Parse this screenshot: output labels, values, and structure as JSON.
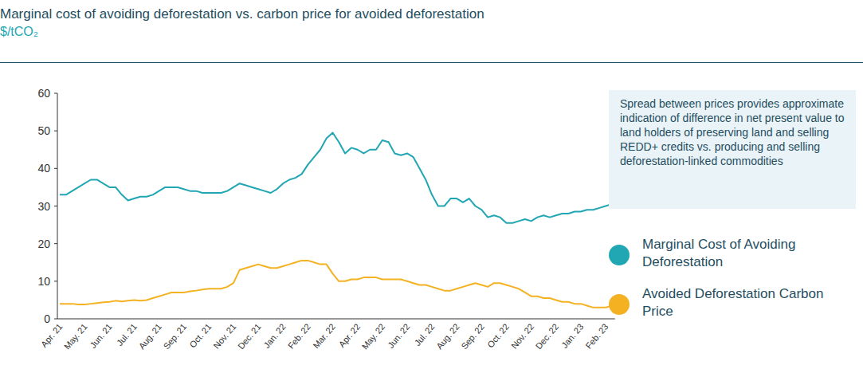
{
  "chart_data": {
    "type": "line",
    "title": "Marginal cost of avoiding deforestation vs. carbon price for avoided deforestation",
    "subtitle": "$/tCO₂",
    "annotation": "Spread between prices provides approximate indication of difference in net present value to land holders of preserving land and selling REDD+ credits vs. producing and selling deforestation-linked commodities",
    "categories": [
      "Apr. 21",
      null,
      null,
      null,
      "May. 21",
      null,
      null,
      null,
      "Jun. 21",
      null,
      null,
      null,
      "Jul. 21",
      null,
      null,
      null,
      "Aug. 21",
      null,
      null,
      null,
      "Sep. 21",
      null,
      null,
      null,
      "Oct. 21",
      null,
      null,
      null,
      "Nov. 21",
      null,
      null,
      null,
      "Dec. 21",
      null,
      null,
      null,
      "Jan. 22",
      null,
      null,
      null,
      "Feb. 22",
      null,
      null,
      null,
      "Mar. 22",
      null,
      null,
      null,
      "Apr. 22",
      null,
      null,
      null,
      "May. 22",
      null,
      null,
      null,
      "Jun. 22",
      null,
      null,
      null,
      "Jul. 22",
      null,
      null,
      null,
      "Aug. 22",
      null,
      null,
      null,
      "Sep. 22",
      null,
      null,
      null,
      "Oct. 22",
      null,
      null,
      null,
      "Nov. 22",
      null,
      null,
      null,
      "Dec. 22",
      null,
      null,
      null,
      "Jan. 23",
      null,
      null,
      null,
      "Feb. 23",
      null
    ],
    "series": [
      {
        "name": "Marginal Cost of Avoiding Deforestation",
        "color": "#21a6b4",
        "values": [
          33,
          33,
          34,
          35,
          36,
          37,
          37,
          36,
          35,
          35,
          33,
          31.5,
          32,
          32.5,
          32.5,
          33,
          34,
          35,
          35,
          35,
          34.5,
          34,
          34,
          33.5,
          33.5,
          33.5,
          33.5,
          34,
          35,
          36,
          35.5,
          35,
          34.5,
          34,
          33.5,
          34.5,
          36,
          37,
          37.5,
          38.5,
          41,
          43,
          45,
          48,
          49.5,
          47,
          44,
          45.5,
          45,
          44,
          45,
          45,
          47.5,
          47,
          44,
          43.5,
          44,
          43,
          40,
          37,
          33,
          30,
          30,
          32,
          32,
          31,
          32,
          30,
          29,
          27,
          27.5,
          27,
          25.5,
          25.5,
          26,
          26.5,
          26,
          27,
          27.5,
          27,
          27.5,
          28,
          28,
          28.5,
          28.5,
          29,
          29,
          29.5,
          30,
          30.5
        ]
      },
      {
        "name": "Avoided Deforestation Carbon Price",
        "color": "#f4b223",
        "values": [
          4,
          4,
          4,
          3.8,
          3.8,
          4,
          4.2,
          4.4,
          4.5,
          4.8,
          4.6,
          4.8,
          5,
          4.8,
          5,
          5.5,
          6,
          6.5,
          7,
          7,
          7,
          7.3,
          7.5,
          7.8,
          8,
          8,
          8,
          8.5,
          9.5,
          13,
          13.5,
          14,
          14.5,
          14,
          13.5,
          13.5,
          14,
          14.5,
          15,
          15.5,
          15.5,
          15,
          14.5,
          14.5,
          12,
          10,
          10,
          10.5,
          10.5,
          11,
          11,
          11,
          10.5,
          10.5,
          10.5,
          10.5,
          10,
          9.5,
          9,
          9,
          8.5,
          8,
          7.5,
          7.5,
          8,
          8.5,
          9,
          9.5,
          9,
          8.5,
          9.5,
          9.5,
          9,
          8.5,
          8,
          7,
          6,
          6,
          5.5,
          5.5,
          5,
          4.5,
          4.5,
          4,
          4,
          3.5,
          3,
          3,
          3,
          3.5
        ]
      }
    ],
    "ylim": [
      0,
      60
    ],
    "yticks": [
      0,
      10,
      20,
      30,
      40,
      50,
      60
    ],
    "grid": false,
    "legend": "right"
  }
}
